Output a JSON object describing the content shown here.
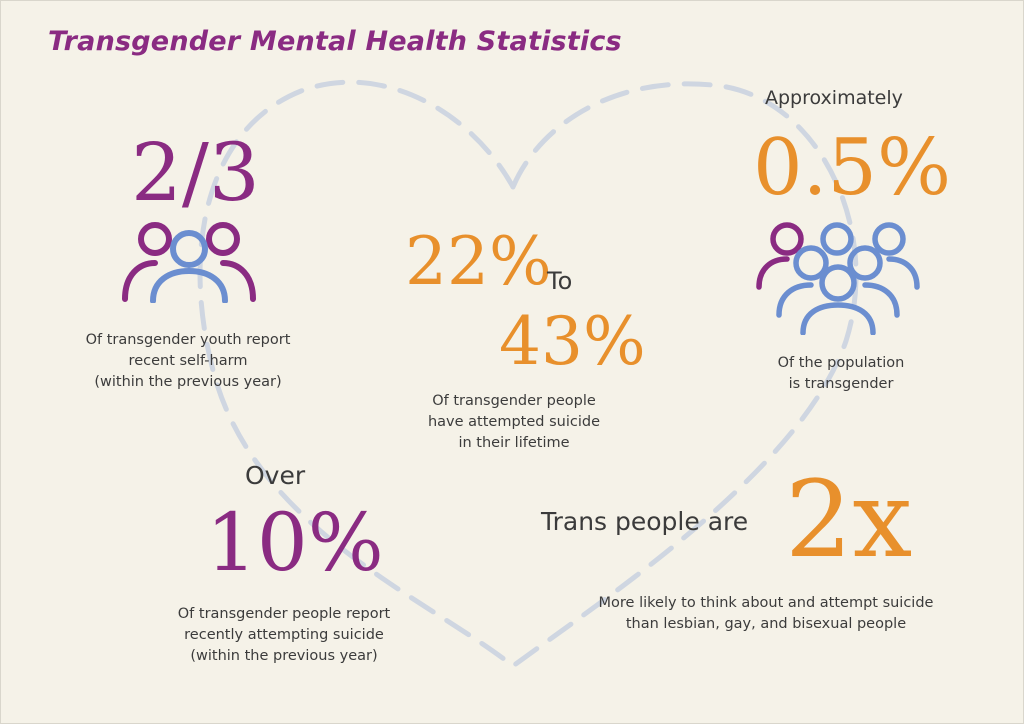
{
  "title": "Transgender Mental Health Statistics",
  "colors": {
    "purple": "#8a2b82",
    "orange": "#e8902c",
    "blue": "#6b8ed0",
    "heart_dash": "#cfd6e1",
    "background": "#f5f2e8"
  },
  "stats": {
    "self_harm": {
      "value": "2/3",
      "icon": "people-group-icon",
      "caption": [
        "Of transgender youth report",
        "recent self-harm",
        "(within the previous year)"
      ]
    },
    "attempted_suicide_lifetime": {
      "low": "22%",
      "connector": "To",
      "high": "43%",
      "caption": [
        "Of transgender people",
        "have attempted suicide",
        "in their lifetime"
      ]
    },
    "population": {
      "prefix": "Approximately",
      "value": "0.5%",
      "icon": "crowd-icon",
      "caption": [
        "Of the population",
        "is transgender"
      ]
    },
    "recent_attempt": {
      "prefix": "Over",
      "value": "10%",
      "caption": [
        "Of transgender people report",
        "recently attempting suicide",
        "(within the previous year)"
      ]
    },
    "comparison": {
      "prefix": "Trans people are",
      "value": "2x",
      "caption": [
        "More likely to think about and attempt suicide",
        "than lesbian, gay, and bisexual people"
      ]
    }
  }
}
